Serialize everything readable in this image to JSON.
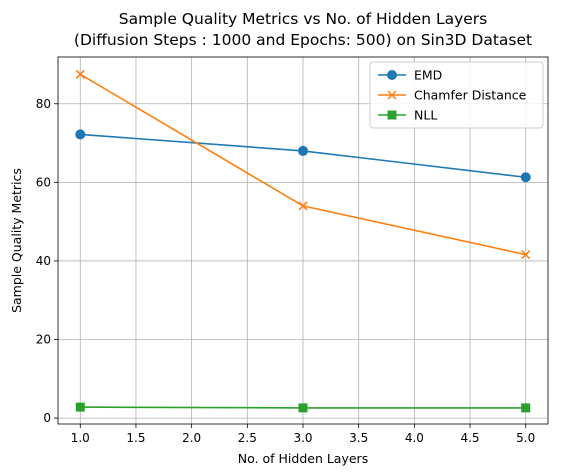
{
  "chart_data": {
    "type": "line",
    "title": "Sample Quality Metrics vs No. of Hidden Layers",
    "subtitle": "(Diffusion Steps : 1000 and Epochs: 500) on Sin3D Dataset",
    "xlabel": "No. of Hidden Layers",
    "ylabel": "Sample Quality Metrics",
    "xlim": [
      0.8,
      5.2
    ],
    "ylim": [
      -1.5,
      91.9
    ],
    "xticks": [
      1.0,
      1.5,
      2.0,
      2.5,
      3.0,
      3.5,
      4.0,
      4.5,
      5.0
    ],
    "xtick_labels": [
      "1.0",
      "1.5",
      "2.0",
      "2.5",
      "3.0",
      "3.5",
      "4.0",
      "4.5",
      "5.0"
    ],
    "yticks": [
      0,
      20,
      40,
      60,
      80
    ],
    "ytick_labels": [
      "0",
      "20",
      "40",
      "60",
      "80"
    ],
    "x": [
      1,
      3,
      5
    ],
    "grid": true,
    "legend_position": "top-right",
    "series": [
      {
        "name": "EMD",
        "values": [
          72.2,
          68.0,
          61.3
        ],
        "color": "#1f77b4",
        "marker": "circle"
      },
      {
        "name": "Chamfer Distance",
        "values": [
          87.5,
          54.0,
          41.6
        ],
        "color": "#ff7f0e",
        "marker": "x"
      },
      {
        "name": "NLL",
        "values": [
          2.8,
          2.6,
          2.6
        ],
        "color": "#2ca02c",
        "marker": "square"
      }
    ]
  }
}
